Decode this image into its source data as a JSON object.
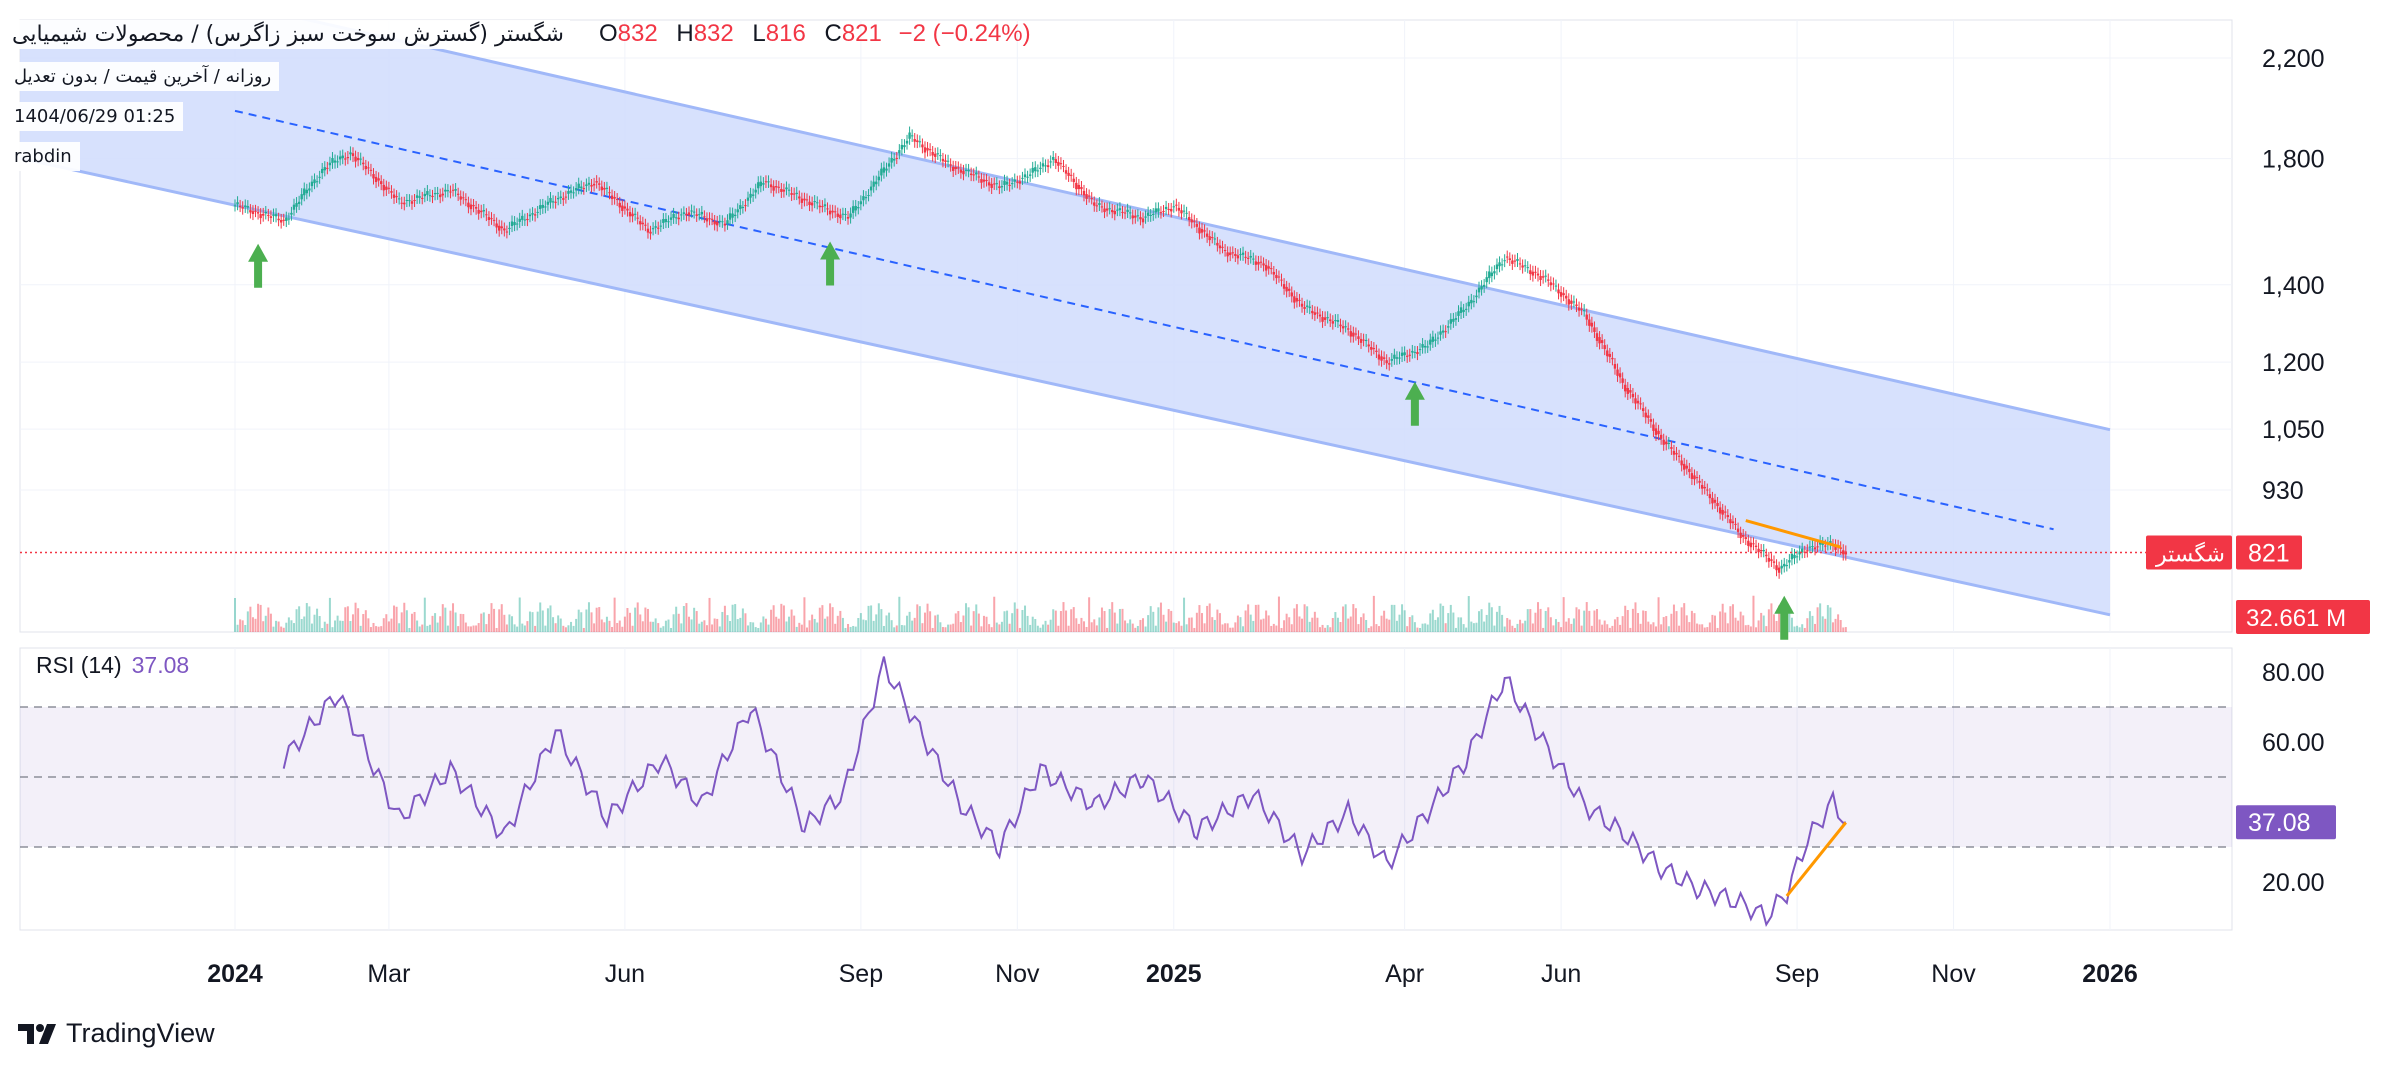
{
  "header": {
    "symbol_full": "شگستر (گسترش سوخت سبز زاگرس) / محصولات شیمیایی",
    "subtitle": "روزانه / آخرین قیمت / بدون تعدیل",
    "datetime": "1404/06/29 01:25",
    "author": "rabdin",
    "ohlc": {
      "o_label": "O",
      "o": "832",
      "h_label": "H",
      "h": "832",
      "l_label": "L",
      "l": "816",
      "c_label": "C",
      "c": "821",
      "change": "−2 (−0.24%)"
    }
  },
  "price_axis": {
    "labels": [
      "2,200",
      "1,800",
      "1,400",
      "1,200",
      "1,050",
      "930"
    ],
    "last_price_label": "821",
    "symbol_tag": "شگستر",
    "volume_label": "32.661 M"
  },
  "rsi": {
    "title": "RSI (14)",
    "value_label": "37.08",
    "axis_labels": [
      "80.00",
      "60.00",
      "20.00"
    ],
    "levels": [
      70,
      50,
      30
    ]
  },
  "time_axis": {
    "labels": [
      "2024",
      "Mar",
      "Jun",
      "Sep",
      "Nov",
      "2025",
      "Apr",
      "Jun",
      "Sep",
      "Nov",
      "2026"
    ]
  },
  "branding": {
    "name": "TradingView"
  },
  "colors": {
    "up": "#22ab94",
    "down": "#f23645",
    "channel_fill": "#d0dcfd",
    "channel_line": "#a0b8f8",
    "rsi_line": "#7e57c2",
    "trend_orange": "#ff9800",
    "arrow_green": "#4caf50",
    "price_tag": "#f23645",
    "rsi_tag": "#7e57c2"
  },
  "chart_data": {
    "type": "candlestick",
    "chart_style": "Heikin Ashi, daily",
    "price_scale": "log",
    "price_axis_ticks": [
      2200,
      1800,
      1400,
      1200,
      1050,
      930
    ],
    "last_close": 821,
    "price_path": [
      {
        "date": "2024-01-01",
        "price": 1640
      },
      {
        "date": "2024-01-20",
        "price": 1590
      },
      {
        "date": "2024-02-05",
        "price": 1770
      },
      {
        "date": "2024-02-15",
        "price": 1820
      },
      {
        "date": "2024-03-05",
        "price": 1650
      },
      {
        "date": "2024-03-25",
        "price": 1690
      },
      {
        "date": "2024-04-15",
        "price": 1560
      },
      {
        "date": "2024-05-05",
        "price": 1660
      },
      {
        "date": "2024-05-20",
        "price": 1720
      },
      {
        "date": "2024-06-10",
        "price": 1560
      },
      {
        "date": "2024-06-25",
        "price": 1620
      },
      {
        "date": "2024-07-10",
        "price": 1580
      },
      {
        "date": "2024-07-25",
        "price": 1720
      },
      {
        "date": "2024-08-15",
        "price": 1640
      },
      {
        "date": "2024-08-27",
        "price": 1600
      },
      {
        "date": "2024-09-05",
        "price": 1700
      },
      {
        "date": "2024-09-20",
        "price": 1880
      },
      {
        "date": "2024-10-05",
        "price": 1780
      },
      {
        "date": "2024-10-25",
        "price": 1700
      },
      {
        "date": "2024-11-05",
        "price": 1740
      },
      {
        "date": "2024-11-15",
        "price": 1800
      },
      {
        "date": "2024-12-01",
        "price": 1640
      },
      {
        "date": "2024-12-20",
        "price": 1600
      },
      {
        "date": "2025-01-01",
        "price": 1640
      },
      {
        "date": "2025-01-20",
        "price": 1500
      },
      {
        "date": "2025-02-05",
        "price": 1460
      },
      {
        "date": "2025-02-20",
        "price": 1340
      },
      {
        "date": "2025-03-10",
        "price": 1280
      },
      {
        "date": "2025-03-25",
        "price": 1200
      },
      {
        "date": "2025-04-10",
        "price": 1240
      },
      {
        "date": "2025-04-25",
        "price": 1340
      },
      {
        "date": "2025-05-10",
        "price": 1480
      },
      {
        "date": "2025-05-25",
        "price": 1420
      },
      {
        "date": "2025-06-10",
        "price": 1320
      },
      {
        "date": "2025-06-25",
        "price": 1150
      },
      {
        "date": "2025-07-10",
        "price": 1030
      },
      {
        "date": "2025-07-25",
        "price": 940
      },
      {
        "date": "2025-08-10",
        "price": 850
      },
      {
        "date": "2025-08-25",
        "price": 795
      },
      {
        "date": "2025-09-05",
        "price": 830
      },
      {
        "date": "2025-09-15",
        "price": 835
      },
      {
        "date": "2025-09-20",
        "price": 821
      }
    ],
    "channel": {
      "upper": [
        {
          "date": "2024-01-20",
          "price": 2400
        },
        {
          "date": "2025-12-31",
          "price": 1050
        }
      ],
      "middle": [
        {
          "date": "2024-01-01",
          "price": 1980
        },
        {
          "date": "2025-12-10",
          "price": 860
        }
      ],
      "lower": [
        {
          "date": "2023-10-25",
          "price": 1770
        },
        {
          "date": "2025-11-20",
          "price": 760
        }
      ]
    },
    "support_arrows": [
      "2024-01-10",
      "2024-08-20",
      "2025-04-05",
      "2025-08-27"
    ],
    "orange_trendline_price": [
      {
        "date": "2025-08-12",
        "price": 875
      },
      {
        "date": "2025-09-18",
        "price": 830
      }
    ],
    "orange_trendline_rsi": [
      {
        "date": "2025-08-28",
        "value": 16
      },
      {
        "date": "2025-09-20",
        "value": 37
      }
    ],
    "rsi_values": [
      {
        "date": "2024-01-20",
        "value": 55
      },
      {
        "date": "2024-02-10",
        "value": 74
      },
      {
        "date": "2024-03-05",
        "value": 38
      },
      {
        "date": "2024-03-25",
        "value": 52
      },
      {
        "date": "2024-04-15",
        "value": 33
      },
      {
        "date": "2024-05-05",
        "value": 63
      },
      {
        "date": "2024-05-25",
        "value": 38
      },
      {
        "date": "2024-06-15",
        "value": 55
      },
      {
        "date": "2024-07-01",
        "value": 42
      },
      {
        "date": "2024-07-20",
        "value": 70
      },
      {
        "date": "2024-08-10",
        "value": 36
      },
      {
        "date": "2024-08-25",
        "value": 45
      },
      {
        "date": "2024-09-10",
        "value": 82
      },
      {
        "date": "2024-09-25",
        "value": 62
      },
      {
        "date": "2024-10-10",
        "value": 42
      },
      {
        "date": "2024-10-25",
        "value": 30
      },
      {
        "date": "2024-11-10",
        "value": 52
      },
      {
        "date": "2024-12-01",
        "value": 42
      },
      {
        "date": "2024-12-20",
        "value": 50
      },
      {
        "date": "2025-01-10",
        "value": 35
      },
      {
        "date": "2025-02-01",
        "value": 45
      },
      {
        "date": "2025-02-20",
        "value": 28
      },
      {
        "date": "2025-03-10",
        "value": 40
      },
      {
        "date": "2025-03-25",
        "value": 25
      },
      {
        "date": "2025-04-10",
        "value": 40
      },
      {
        "date": "2025-04-25",
        "value": 55
      },
      {
        "date": "2025-05-10",
        "value": 78
      },
      {
        "date": "2025-05-25",
        "value": 60
      },
      {
        "date": "2025-06-10",
        "value": 42
      },
      {
        "date": "2025-06-25",
        "value": 34
      },
      {
        "date": "2025-07-10",
        "value": 24
      },
      {
        "date": "2025-07-25",
        "value": 18
      },
      {
        "date": "2025-08-10",
        "value": 14
      },
      {
        "date": "2025-08-20",
        "value": 10
      },
      {
        "date": "2025-08-28",
        "value": 17
      },
      {
        "date": "2025-09-05",
        "value": 32
      },
      {
        "date": "2025-09-15",
        "value": 43
      },
      {
        "date": "2025-09-20",
        "value": 37.08
      }
    ],
    "volume_last": "32.661 M"
  }
}
